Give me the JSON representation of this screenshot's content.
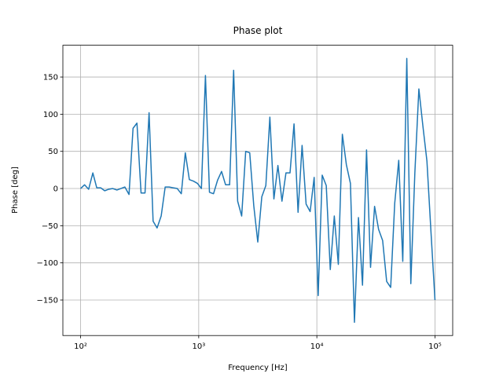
{
  "chart_data": {
    "type": "line",
    "title": "Phase plot",
    "x_label": "Frequency [Hz]",
    "y_label": "Phase [deg]",
    "x_scale": "log",
    "grid": true,
    "color": "#1f77b4",
    "xlim": [
      70.8,
      141254
    ],
    "ylim": [
      -197.75,
      192.75
    ],
    "xticks": [
      {
        "value": 100,
        "label": "10²"
      },
      {
        "value": 1000,
        "label": "10³"
      },
      {
        "value": 10000,
        "label": "10⁴"
      },
      {
        "value": 100000,
        "label": "10⁵"
      }
    ],
    "yticks": [
      {
        "value": -150,
        "label": "−150"
      },
      {
        "value": -100,
        "label": "−100"
      },
      {
        "value": -50,
        "label": "−50"
      },
      0,
      50,
      100,
      150
    ],
    "x": [
      100,
      108,
      117,
      127,
      137,
      148,
      160,
      173,
      187,
      203,
      219,
      237,
      257,
      278,
      300,
      325,
      351,
      380,
      411,
      444,
      481,
      520,
      562,
      608,
      658,
      712,
      770,
      833,
      901,
      974,
      1054,
      1140,
      1233,
      1334,
      1443,
      1561,
      1688,
      1826,
      1975,
      2136,
      2310,
      2499,
      2703,
      2924,
      3162,
      3420,
      3700,
      4002,
      4329,
      4682,
      5065,
      5478,
      5926,
      6410,
      6933,
      7499,
      8112,
      8774,
      9491,
      10260,
      11100,
      12010,
      12990,
      14050,
      15200,
      16440,
      17780,
      19240,
      20810,
      22510,
      24350,
      26340,
      28480,
      30810,
      33330,
      36050,
      38990,
      42170,
      45620,
      49340,
      53370,
      57730,
      62450,
      67540,
      73060,
      79030,
      85480,
      92460,
      100000
    ],
    "values": [
      0,
      5,
      -1,
      21,
      1,
      1,
      -3,
      -1,
      0,
      -2,
      0,
      2,
      -8,
      81,
      88,
      -6,
      -6,
      102,
      -44,
      -53,
      -37,
      2,
      2,
      1,
      0,
      -7,
      48,
      12,
      10,
      7,
      0,
      152,
      -5,
      -7,
      11,
      23,
      5,
      5,
      159,
      -17,
      -37,
      50,
      48,
      -23,
      -72,
      -11,
      4,
      96,
      -14,
      31,
      -17,
      21,
      21,
      87,
      -32,
      58,
      -21,
      -31,
      15,
      -144,
      18,
      4,
      -109,
      -37,
      -102,
      73,
      32,
      7,
      -180,
      -39,
      -130,
      52,
      -106,
      -24,
      -55,
      -70,
      -125,
      -133,
      -20,
      38,
      -98,
      175,
      -128,
      21,
      134,
      84,
      37,
      -58,
      -150
    ]
  }
}
